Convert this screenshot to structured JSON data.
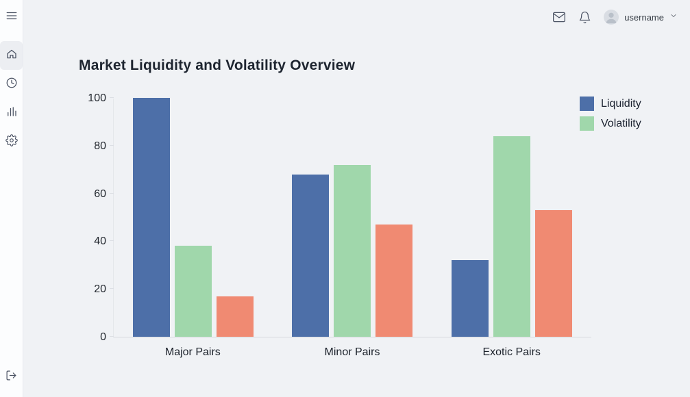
{
  "sidebar": {
    "items": [
      {
        "id": "menu",
        "icon": "hamburger-menu-icon"
      },
      {
        "id": "home",
        "icon": "home-icon",
        "active": true
      },
      {
        "id": "history",
        "icon": "clock-icon"
      },
      {
        "id": "analytics",
        "icon": "bar-chart-icon"
      },
      {
        "id": "settings",
        "icon": "gear-icon"
      },
      {
        "id": "logout",
        "icon": "logout-icon"
      }
    ]
  },
  "topbar": {
    "icons": [
      "mail-icon",
      "bell-icon",
      "avatar",
      "chevron-down-icon"
    ],
    "username": "username"
  },
  "chart_data": {
    "type": "bar",
    "title": "Market Liquidity and Volatility Overview",
    "categories": [
      "Major Pairs",
      "Minor Pairs",
      "Exotic Pairs"
    ],
    "series": [
      {
        "name": "Liquidity",
        "color": "#4d6fa8",
        "values": [
          100,
          68,
          32
        ]
      },
      {
        "name": "Volatility",
        "color": "#a0d7ab",
        "values": [
          38,
          72,
          84
        ]
      },
      {
        "name": "",
        "color": "#f08a72",
        "values": [
          17,
          47,
          53
        ]
      }
    ],
    "legend": [
      {
        "label": "Liquidity",
        "color": "#4d6fa8"
      },
      {
        "label": "Volatility",
        "color": "#a0d7ab"
      }
    ],
    "legend_position": "top-right",
    "xlabel": "",
    "ylabel": "",
    "ylim": [
      0,
      100
    ],
    "yticks": [
      0,
      20,
      40,
      60,
      80,
      100
    ],
    "grid": false
  },
  "colors": {
    "background": "#f0f2f5",
    "sidebar_background": "#fcfdfe",
    "active_nav_background": "#eceef2",
    "axis_line": "#d6d9de",
    "bar_blue": "#4d6fa8",
    "bar_green": "#a0d7ab",
    "bar_salmon": "#f08a72"
  }
}
